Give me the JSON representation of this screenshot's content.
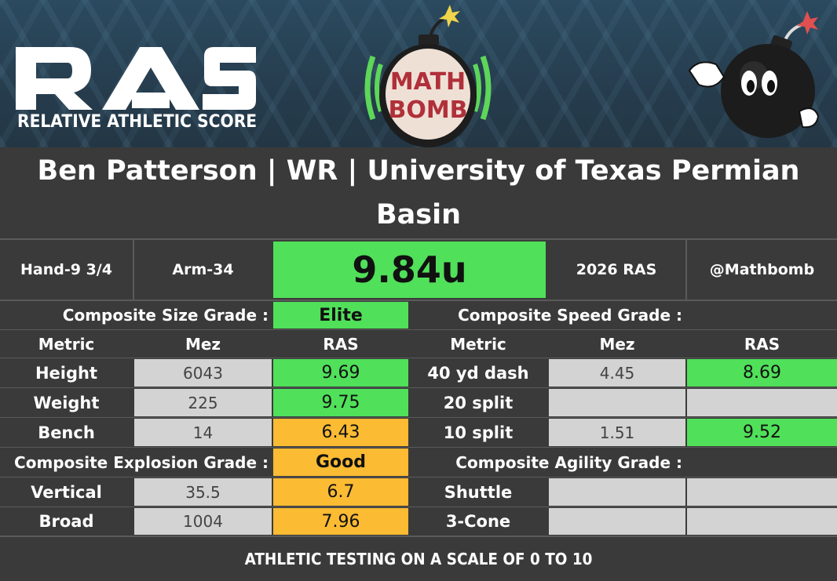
{
  "header": {
    "logo_text": "RAS",
    "logo_subtitle": "RELATIVE ATHLETIC SCORE",
    "mathbomb_logo": [
      "MATH",
      "BOMB"
    ],
    "mascot_icon": "bomb-mascot-icon"
  },
  "title": "Ben Patterson | WR | University of Texas Permian Basin",
  "top_row": {
    "hand": "Hand-9 3/4",
    "arm": "Arm-34",
    "ras_score": "9.84u",
    "year": "2026 RAS",
    "handle": "@Mathbomb"
  },
  "size": {
    "grade_label": "Composite Size Grade :",
    "grade": "Elite",
    "headers": [
      "Metric",
      "Mez",
      "RAS"
    ],
    "rows": [
      {
        "metric": "Height",
        "mez": "6043",
        "ras": "9.69"
      },
      {
        "metric": "Weight",
        "mez": "225",
        "ras": "9.75"
      },
      {
        "metric": "Bench",
        "mez": "14",
        "ras": "6.43"
      }
    ]
  },
  "speed": {
    "grade_label": "Composite Speed Grade :",
    "grade": "",
    "headers": [
      "Metric",
      "Mez",
      "RAS"
    ],
    "rows": [
      {
        "metric": "40 yd dash",
        "mez": "4.45",
        "ras": "8.69"
      },
      {
        "metric": "20 split",
        "mez": "",
        "ras": ""
      },
      {
        "metric": "10 split",
        "mez": "1.51",
        "ras": "9.52"
      }
    ]
  },
  "explosion": {
    "grade_label": "Composite Explosion Grade :",
    "grade": "Good",
    "rows": [
      {
        "metric": "Vertical",
        "mez": "35.5",
        "ras": "6.7"
      },
      {
        "metric": "Broad",
        "mez": "1004",
        "ras": "7.96"
      }
    ]
  },
  "agility": {
    "grade_label": "Composite Agility Grade :",
    "grade": "",
    "rows": [
      {
        "metric": "Shuttle",
        "mez": "",
        "ras": ""
      },
      {
        "metric": "3-Cone",
        "mez": "",
        "ras": ""
      }
    ]
  },
  "colors": {
    "elite_green": "#50e05a",
    "good_orange": "#fbbb33",
    "empty_gray": "#d3d3d3",
    "background": "#3a3a3a"
  },
  "footer": "ATHLETIC TESTING ON A SCALE OF 0 TO 10"
}
